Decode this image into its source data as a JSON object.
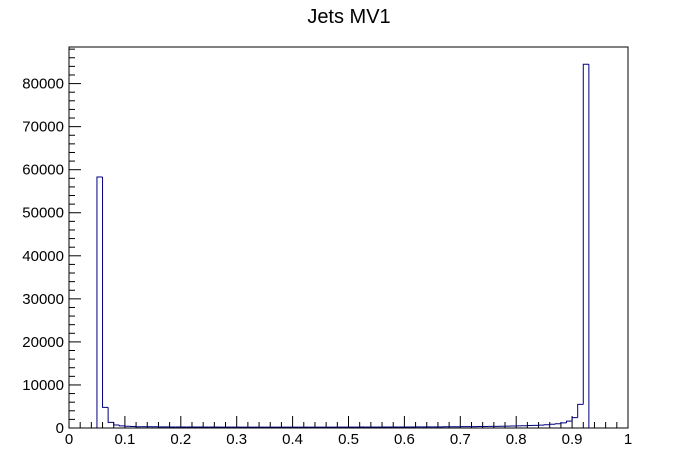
{
  "chart_data": {
    "type": "bar",
    "style": "histogram-step",
    "title": "Jets MV1",
    "xlabel": "",
    "ylabel": "",
    "xlim": [
      0,
      1
    ],
    "ylim": [
      0,
      88500
    ],
    "x_ticks": [
      "0",
      "0.1",
      "0.2",
      "0.3",
      "0.4",
      "0.5",
      "0.6",
      "0.7",
      "0.8",
      "0.9",
      "1"
    ],
    "y_ticks": [
      "0",
      "10000",
      "20000",
      "30000",
      "40000",
      "50000",
      "60000",
      "70000",
      "80000"
    ],
    "bin_width": 0.01,
    "bins_start": 0.05,
    "values": [
      58300,
      4800,
      1300,
      700,
      500,
      400,
      350,
      300,
      300,
      300,
      280,
      260,
      250,
      240,
      240,
      230,
      230,
      230,
      220,
      220,
      220,
      220,
      210,
      210,
      210,
      210,
      200,
      200,
      200,
      200,
      200,
      200,
      200,
      200,
      200,
      200,
      200,
      200,
      200,
      200,
      200,
      200,
      210,
      210,
      210,
      210,
      210,
      220,
      220,
      220,
      220,
      230,
      230,
      230,
      230,
      240,
      240,
      250,
      250,
      260,
      260,
      270,
      280,
      290,
      300,
      310,
      320,
      330,
      340,
      350,
      370,
      390,
      410,
      430,
      460,
      490,
      530,
      570,
      620,
      680,
      760,
      860,
      980,
      1200,
      1600,
      2400,
      5500,
      84500
    ],
    "line_color": "#000080",
    "grid": false,
    "legend": "none"
  }
}
